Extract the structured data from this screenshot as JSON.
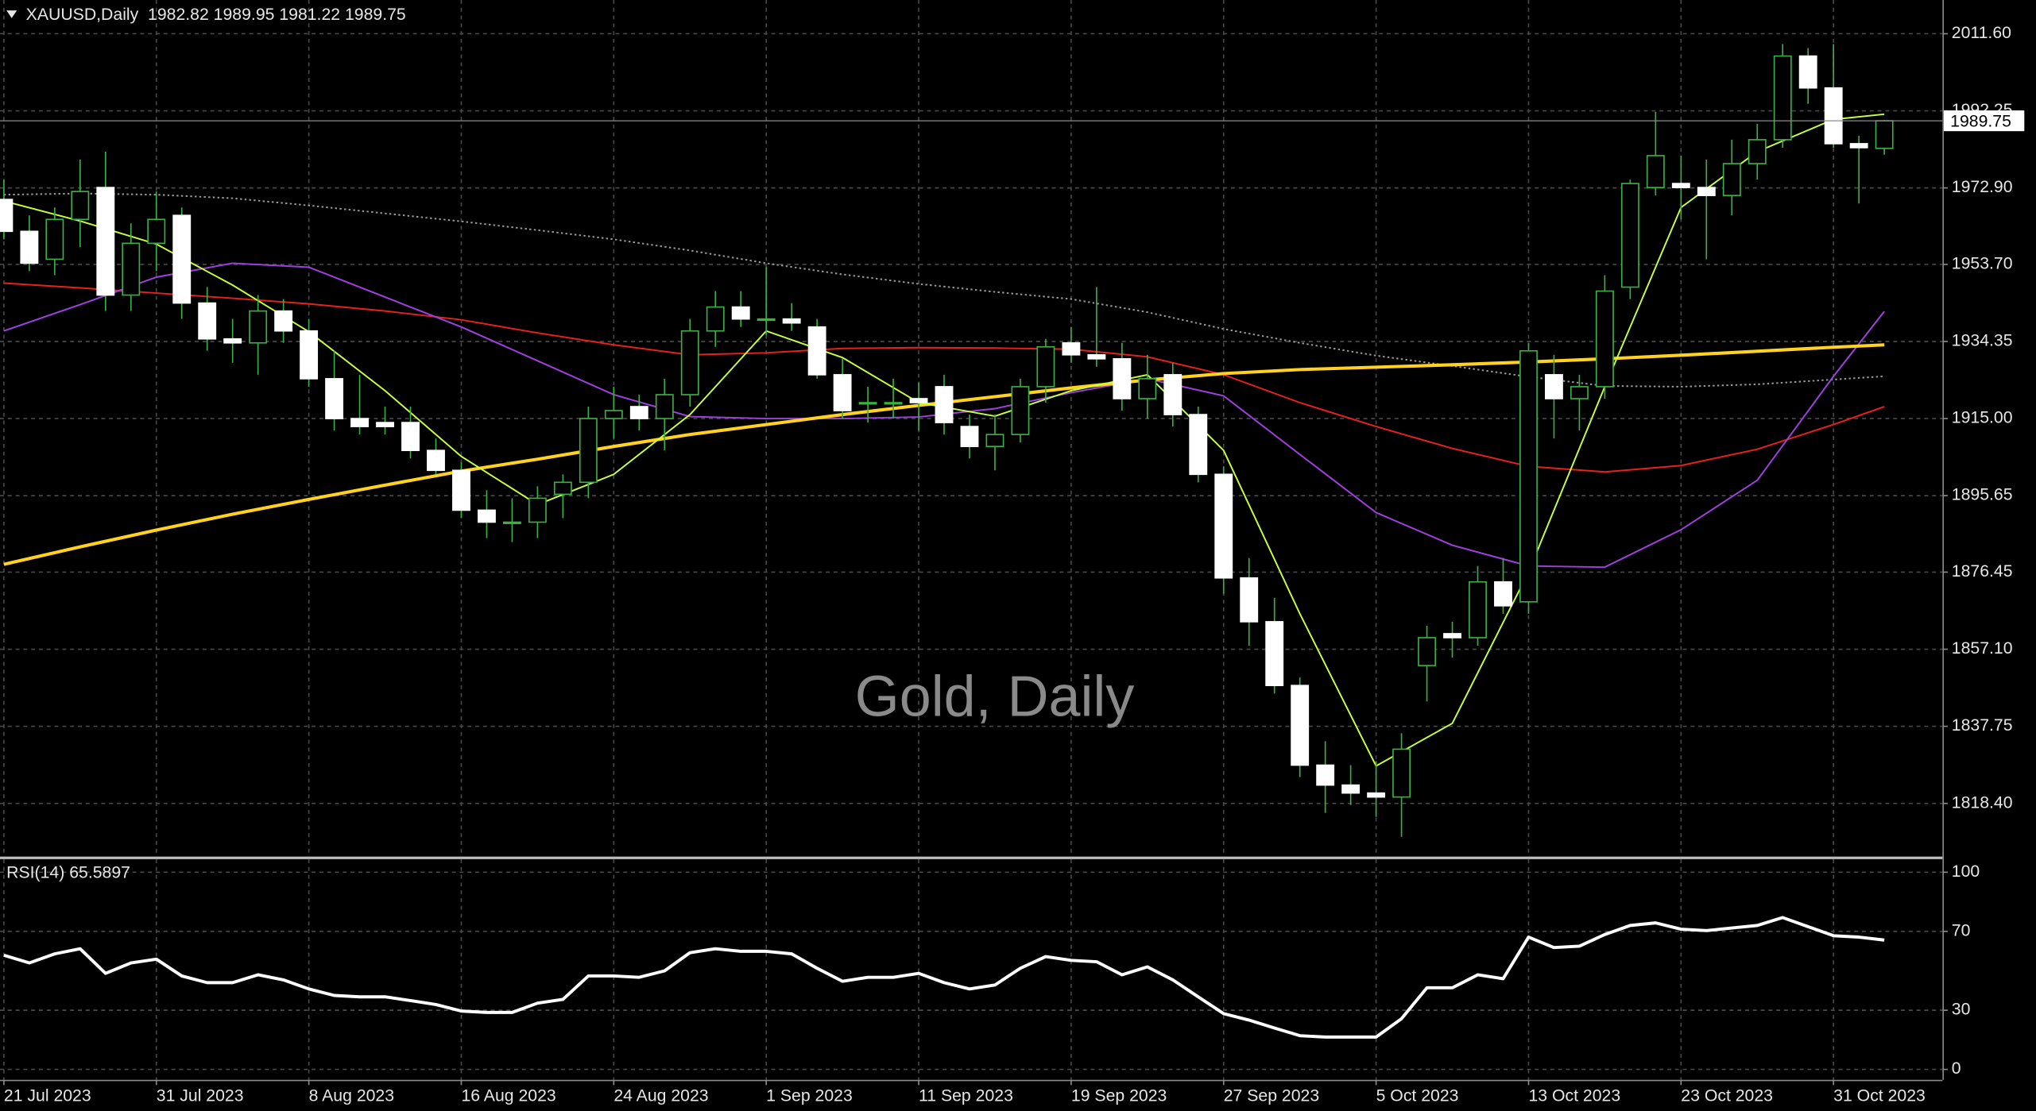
{
  "chart_data": [
    {
      "type": "candlestick",
      "title": "XAUUSD,Daily  1982.82 1989.95 1981.22 1989.75",
      "watermark": "Gold, Daily",
      "categories": [
        "21 Jul 2023",
        null,
        null,
        null,
        null,
        null,
        "31 Jul 2023",
        null,
        null,
        null,
        null,
        null,
        "8 Aug 2023",
        null,
        null,
        null,
        null,
        null,
        "16 Aug 2023",
        null,
        null,
        null,
        null,
        null,
        "24 Aug 2023",
        null,
        null,
        null,
        null,
        null,
        "1 Sep 2023",
        null,
        null,
        null,
        null,
        null,
        "11 Sep 2023",
        null,
        null,
        null,
        null,
        null,
        "19 Sep 2023",
        null,
        null,
        null,
        null,
        null,
        "27 Sep 2023",
        null,
        null,
        null,
        null,
        null,
        "5 Oct 2023",
        null,
        null,
        null,
        null,
        null,
        "13 Oct 2023",
        null,
        null,
        null,
        null,
        null,
        "23 Oct 2023",
        null,
        null,
        null,
        null,
        null,
        "31 Oct 2023",
        null,
        null
      ],
      "open": [
        1970,
        1962,
        1955,
        1965,
        1973,
        1946,
        1959,
        1966,
        1944,
        1935,
        1934,
        1942,
        1937,
        1925,
        1915,
        1914,
        1914,
        1907,
        1902,
        1892,
        1889,
        1889,
        1896,
        1899,
        1915,
        1918,
        1915,
        1921,
        1937,
        1943,
        1940,
        1940,
        1938,
        1926,
        1919,
        1919,
        1920,
        1923,
        1913,
        1908,
        1911,
        1923,
        1934,
        1931,
        1930,
        1920,
        1926,
        1916,
        1901,
        1875,
        1864,
        1848,
        1828,
        1823,
        1821,
        1820,
        1853,
        1861,
        1860,
        1874,
        1869,
        1926,
        1920,
        1923,
        1948,
        1973,
        1974,
        1973,
        1971,
        1979,
        1985,
        2006,
        1998,
        1984,
        1982.82
      ],
      "high": [
        1975,
        1966,
        1968,
        1980,
        1982,
        1964,
        1972,
        1968,
        1948,
        1940,
        1946,
        1945,
        1940,
        1932,
        1926,
        1918,
        1918,
        1910,
        1904,
        1897,
        1895,
        1898,
        1901,
        1918,
        1923,
        1921,
        1925,
        1940,
        1947,
        1947,
        1953,
        1944,
        1940,
        1930,
        1923,
        1925,
        1924,
        1926,
        1916,
        1916,
        1925,
        1935,
        1938,
        1948,
        1934,
        1931,
        1929,
        1918,
        1903,
        1880,
        1870,
        1850,
        1834,
        1828,
        1829,
        1836,
        1863,
        1864,
        1878,
        1880,
        1934,
        1931,
        1926,
        1951,
        1975,
        1992,
        1981,
        1980,
        1985,
        1989,
        2009,
        2008,
        2009,
        1986,
        1989.95
      ],
      "low": [
        1960,
        1952,
        1951,
        1958,
        1942,
        1942,
        1952,
        1940,
        1932,
        1929,
        1926,
        1934,
        1923,
        1912,
        1911,
        1911,
        1905,
        1901,
        1890,
        1885,
        1884,
        1885,
        1890,
        1895,
        1910,
        1912,
        1907,
        1918,
        1933,
        1938,
        1936,
        1937,
        1925,
        1915,
        1914,
        1915,
        1912,
        1911,
        1905,
        1902,
        1909,
        1919,
        1929,
        1928,
        1917,
        1915,
        1913,
        1899,
        1871,
        1858,
        1846,
        1825,
        1816,
        1818,
        1815,
        1810,
        1844,
        1855,
        1858,
        1866,
        1866,
        1910,
        1912,
        1920,
        1945,
        1971,
        1965,
        1955,
        1966,
        1975,
        1983,
        1994,
        1983,
        1969,
        1981.22
      ],
      "close": [
        1962,
        1954,
        1965,
        1972,
        1946,
        1959,
        1965,
        1944,
        1935,
        1934,
        1942,
        1937,
        1925,
        1915,
        1913,
        1913,
        1907,
        1902,
        1892,
        1889,
        1889,
        1895,
        1899,
        1915,
        1917,
        1915,
        1921,
        1937,
        1943,
        1940,
        1940,
        1939,
        1926,
        1917,
        1919,
        1919,
        1919,
        1914,
        1908,
        1911,
        1923,
        1933,
        1931,
        1930,
        1920,
        1925,
        1916,
        1901,
        1875,
        1864,
        1848,
        1828,
        1823,
        1821,
        1820,
        1832,
        1860,
        1860,
        1874,
        1868,
        1932,
        1920,
        1923,
        1947,
        1974,
        1981,
        1973,
        1971,
        1979,
        1985,
        2006,
        1998,
        1984,
        1983,
        1989.75
      ],
      "up_color": "#000000",
      "down_color": "#ffffff",
      "wick_color": "#3cb043",
      "overlays": [
        {
          "color": "#9a9a9a",
          "dotted": true,
          "x": [
            0,
            3,
            6,
            9,
            12,
            15,
            18,
            21,
            24,
            27,
            30,
            33,
            36,
            39,
            42,
            45,
            48,
            51,
            54,
            57,
            60,
            63,
            66,
            69,
            72,
            74
          ],
          "values": [
            1971.2,
            1971.5,
            1971.2,
            1970.3,
            1968.5,
            1966.5,
            1964.5,
            1962.3,
            1960,
            1957.2,
            1954,
            1951.2,
            1948.8,
            1946.8,
            1945,
            1941.7,
            1937.5,
            1934,
            1930.8,
            1928.2,
            1925.5,
            1923.2,
            1923,
            1923.6,
            1924.8,
            1925.6
          ]
        },
        {
          "color": "#e8201e",
          "x": [
            0,
            3,
            6,
            9,
            12,
            15,
            18,
            21,
            24,
            27,
            30,
            33,
            36,
            39,
            42,
            45,
            48,
            51,
            54,
            57,
            60,
            63,
            66,
            69,
            72,
            74
          ],
          "values": [
            1949,
            1947.8,
            1946.5,
            1945.2,
            1943.8,
            1942,
            1939.8,
            1936.5,
            1933.5,
            1931,
            1931.5,
            1932.6,
            1932.8,
            1932.7,
            1932.4,
            1930.5,
            1926,
            1919,
            1913,
            1907.5,
            1903,
            1901.6,
            1903.2,
            1907.3,
            1913.5,
            1918
          ]
        },
        {
          "color": "#a040e0",
          "x": [
            0,
            3,
            6,
            9,
            12,
            15,
            18,
            21,
            24,
            27,
            30,
            33,
            36,
            39,
            42,
            45,
            48,
            51,
            54,
            57,
            60,
            63,
            66,
            69,
            72,
            74
          ],
          "values": [
            1937,
            1943.6,
            1950.5,
            1954,
            1953,
            1945.5,
            1938,
            1929.5,
            1921,
            1915.5,
            1915,
            1915,
            1915.4,
            1917.5,
            1921.5,
            1925,
            1920.7,
            1906,
            1891.4,
            1883.2,
            1878,
            1877.7,
            1887.1,
            1899.5,
            1925.6,
            1941.9
          ]
        },
        {
          "color": "#ffd21f",
          "width": 2.5,
          "x": [
            0,
            3,
            6,
            9,
            12,
            15,
            18,
            21,
            24,
            27,
            30,
            33,
            36,
            39,
            42,
            45,
            48,
            51,
            54,
            57,
            60,
            63,
            66,
            69,
            72,
            74
          ],
          "values": [
            1878.4,
            1882.8,
            1887,
            1891,
            1894.7,
            1898.3,
            1901.8,
            1904.8,
            1908,
            1911,
            1913.5,
            1916,
            1918.3,
            1920.5,
            1922.7,
            1924.7,
            1926.3,
            1927.3,
            1927.9,
            1928.5,
            1929.2,
            1930,
            1930.9,
            1931.9,
            1932.9,
            1933.5
          ]
        },
        {
          "color": "#c8ff3c",
          "x": [
            0,
            3,
            6,
            9,
            12,
            15,
            18,
            21,
            24,
            27,
            30,
            33,
            36,
            39,
            42,
            45,
            48,
            51,
            54,
            57,
            60,
            63,
            66,
            69,
            72,
            74
          ],
          "values": [
            1969.6,
            1964.6,
            1958.8,
            1948.5,
            1936.8,
            1922,
            1905.5,
            1893.4,
            1901,
            1916,
            1937,
            1930.3,
            1919,
            1915.6,
            1922,
            1926,
            1907,
            1866,
            1827.8,
            1838.5,
            1876.5,
            1923,
            1968,
            1982,
            1990.1,
            1991.4
          ]
        }
      ],
      "ylim": [
        1805.04,
        2020.07
      ],
      "yticks": [
        {
          "value": 2011.6,
          "label": "2011.60"
        },
        1992.25,
        {
          "value": 1972.9,
          "label": "1972.90"
        },
        {
          "value": 1953.7,
          "label": "1953.70"
        },
        1934.35,
        {
          "value": 1915,
          "label": "1915.00"
        },
        1895.65,
        1876.45,
        {
          "value": 1857.1,
          "label": "1857.10"
        },
        1837.75,
        {
          "value": 1818.4,
          "label": "1818.40"
        }
      ],
      "grid": true
    },
    {
      "type": "line",
      "title": "RSI(14) 65.5897",
      "color": "#ffffff",
      "values": [
        57.9,
        54,
        58.6,
        61.2,
        48.7,
        54,
        55.9,
        47.4,
        44,
        44,
        48,
        45.4,
        40.8,
        37.5,
        36.8,
        36.8,
        34.9,
        32.9,
        29.6,
        28.9,
        28.9,
        33.6,
        35.5,
        47.4,
        47.4,
        46.7,
        50,
        59.2,
        61.2,
        59.9,
        59.9,
        58.6,
        51.3,
        44.7,
        46.7,
        46.7,
        48.7,
        44,
        40.8,
        42.8,
        51.3,
        57.2,
        55.3,
        54.6,
        48,
        52,
        45.4,
        36.8,
        28.3,
        25,
        21,
        17.1,
        16.4,
        16.4,
        16.4,
        25.7,
        41.4,
        41.4,
        48,
        46,
        67.1,
        61.8,
        62.5,
        68.4,
        73,
        74.3,
        71.1,
        70.4,
        71.7,
        73,
        77,
        72.4,
        67.8,
        67.1,
        65.5897
      ],
      "ylim": [
        -5.3,
        106.6
      ],
      "yticks": [
        0,
        30,
        70,
        100
      ],
      "grid": true
    }
  ]
}
